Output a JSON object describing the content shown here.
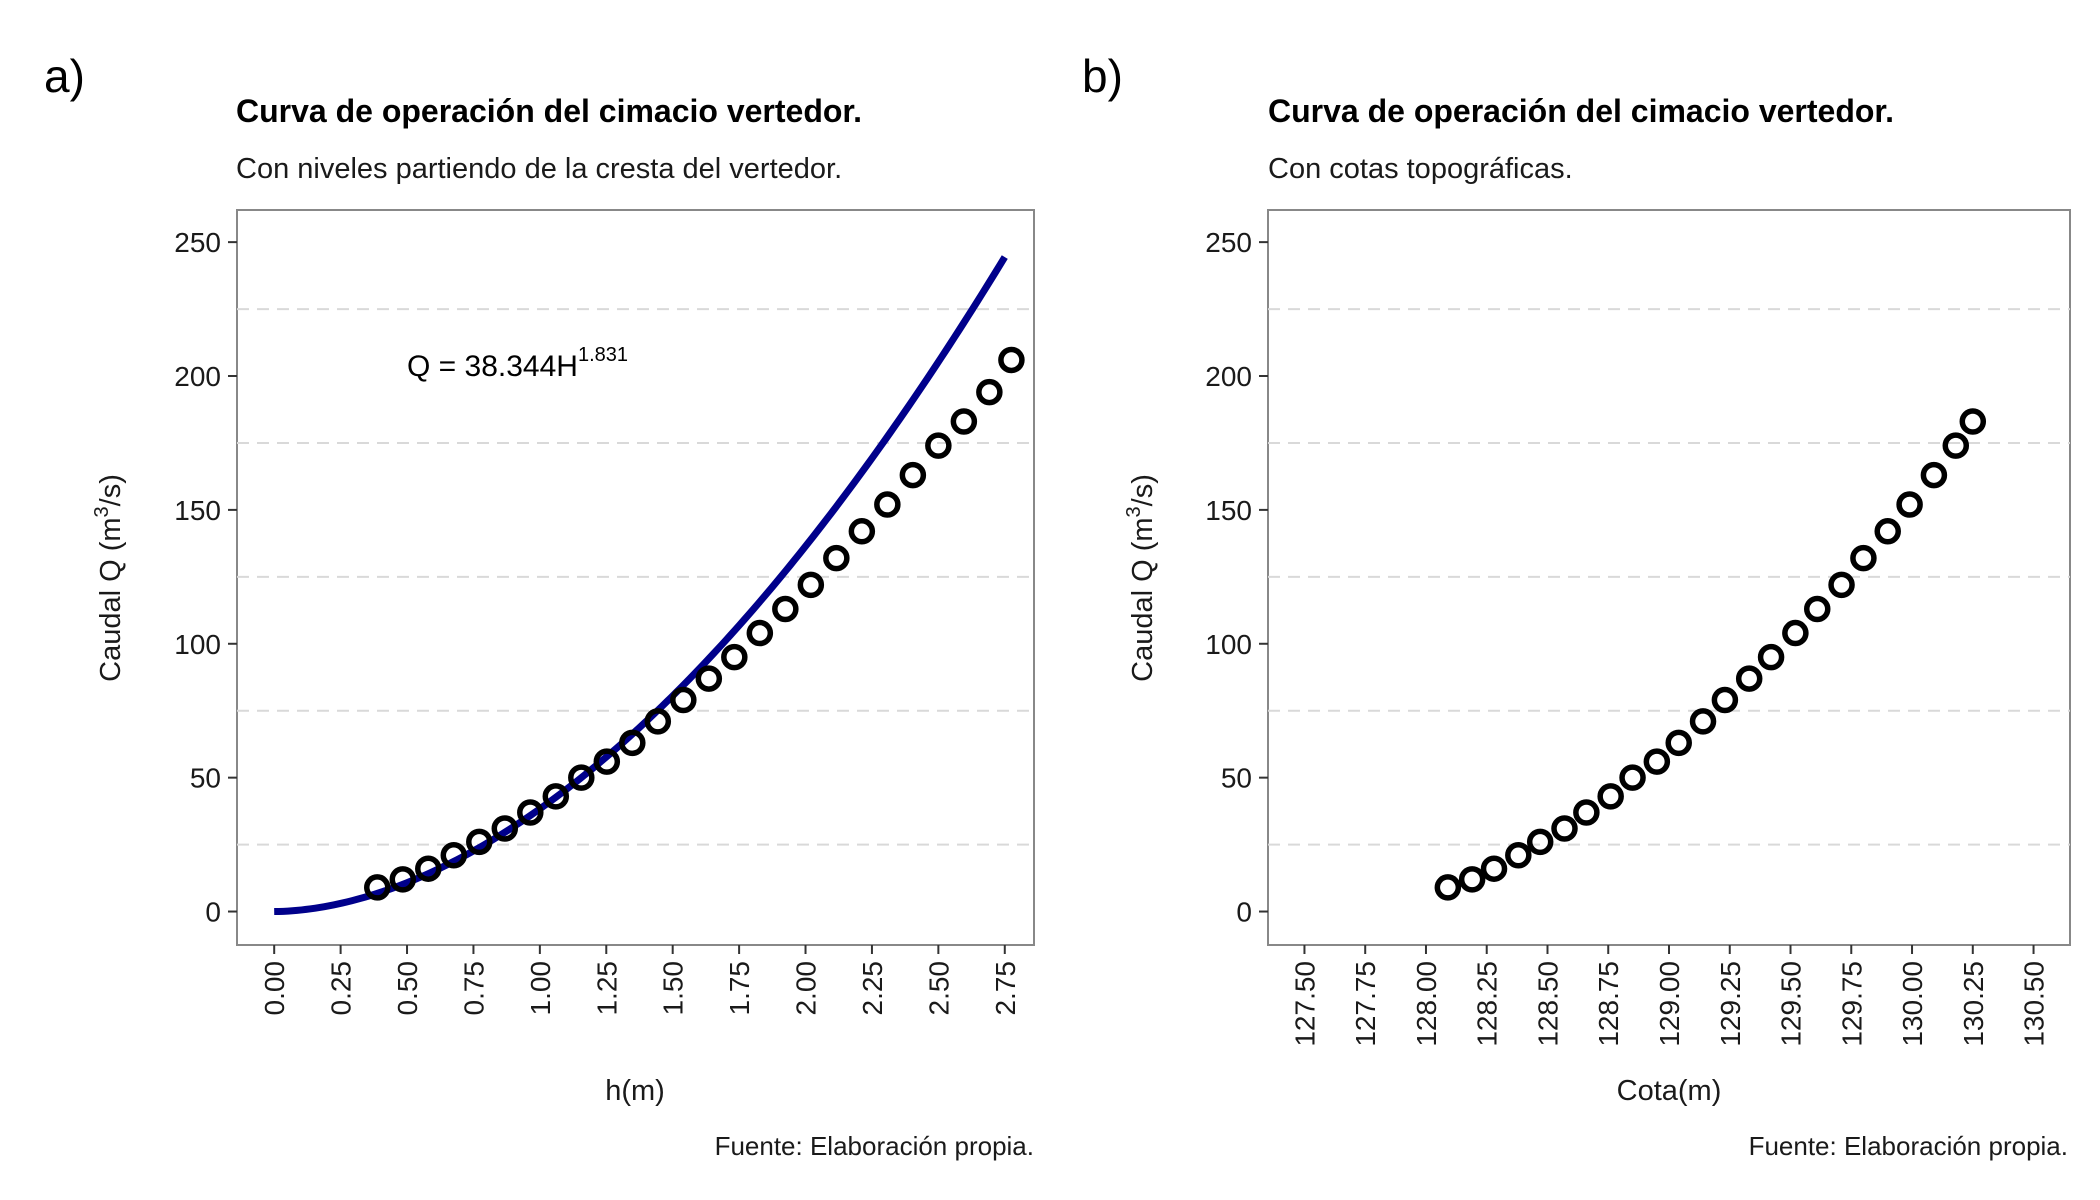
{
  "chart_data": [
    {
      "type": "scatter",
      "panel_label": "a)",
      "title": "Curva de operación del cimacio vertedor.",
      "subtitle": "Con niveles partiendo de la cresta del vertedor.",
      "xlabel": "h(m)",
      "ylabel_prefix": "Caudal Q (m",
      "ylabel_sup": "3",
      "ylabel_suffix": "/s)",
      "caption": "Fuente: Elaboración propia.",
      "xlim": [
        -0.14,
        2.86
      ],
      "ylim": [
        -12.5,
        262
      ],
      "x_ticks": [
        "0.00",
        "0.25",
        "0.50",
        "0.75",
        "1.00",
        "1.25",
        "1.50",
        "1.75",
        "2.00",
        "2.25",
        "2.50",
        "2.75"
      ],
      "y_ticks": [
        "0",
        "50",
        "100",
        "150",
        "200",
        "250"
      ],
      "grid": "dashed horizontal minor",
      "legend": "none",
      "equation_text": "Q = 38.344H",
      "equation_sup": "1.831",
      "equation_pos": [
        0.5,
        200
      ],
      "fit_curve": {
        "a": 38.344,
        "b": 1.831,
        "x_start": 0.0,
        "x_end": 2.75,
        "color": "#00008B"
      },
      "points": {
        "x": [
          0.388,
          0.484,
          0.58,
          0.676,
          0.772,
          0.868,
          0.964,
          1.06,
          1.156,
          1.252,
          1.348,
          1.444,
          1.54,
          1.636,
          1.732,
          1.828,
          1.924,
          2.02,
          2.116,
          2.212,
          2.308,
          2.404,
          2.5,
          2.596,
          2.692,
          2.775
        ],
        "y": [
          9,
          12,
          16,
          21,
          26,
          31,
          37,
          43,
          50,
          56,
          63,
          71,
          79,
          87,
          95,
          104,
          113,
          122,
          132,
          142,
          152,
          163,
          174,
          183,
          194,
          206
        ]
      }
    },
    {
      "type": "scatter",
      "panel_label": "b)",
      "title": "Curva de operación del cimacio vertedor.",
      "subtitle": "Con cotas topográficas.",
      "xlabel": "Cota(m)",
      "ylabel_prefix": "Caudal Q (m",
      "ylabel_sup": "3",
      "ylabel_suffix": "/s)",
      "caption": "Fuente: Elaboración propia.",
      "xlim": [
        127.35,
        130.65
      ],
      "ylim": [
        -12.5,
        262
      ],
      "x_ticks": [
        "127.50",
        "127.75",
        "128.00",
        "128.25",
        "128.50",
        "128.75",
        "129.00",
        "129.25",
        "129.50",
        "129.75",
        "130.00",
        "130.25",
        "130.50"
      ],
      "y_ticks": [
        "0",
        "50",
        "100",
        "150",
        "200",
        "250"
      ],
      "grid": "dashed horizontal minor",
      "legend": "none",
      "points": {
        "x": [
          128.09,
          128.19,
          128.28,
          128.38,
          128.47,
          128.57,
          128.66,
          128.76,
          128.85,
          128.95,
          129.04,
          129.14,
          129.23,
          129.33,
          129.42,
          129.52,
          129.61,
          129.71,
          129.8,
          129.9,
          129.99,
          130.09,
          130.18,
          130.25
        ],
        "y": [
          9,
          12,
          16,
          21,
          26,
          31,
          37,
          43,
          50,
          56,
          63,
          71,
          79,
          87,
          95,
          104,
          113,
          122,
          132,
          142,
          152,
          163,
          174,
          183
        ]
      }
    }
  ]
}
